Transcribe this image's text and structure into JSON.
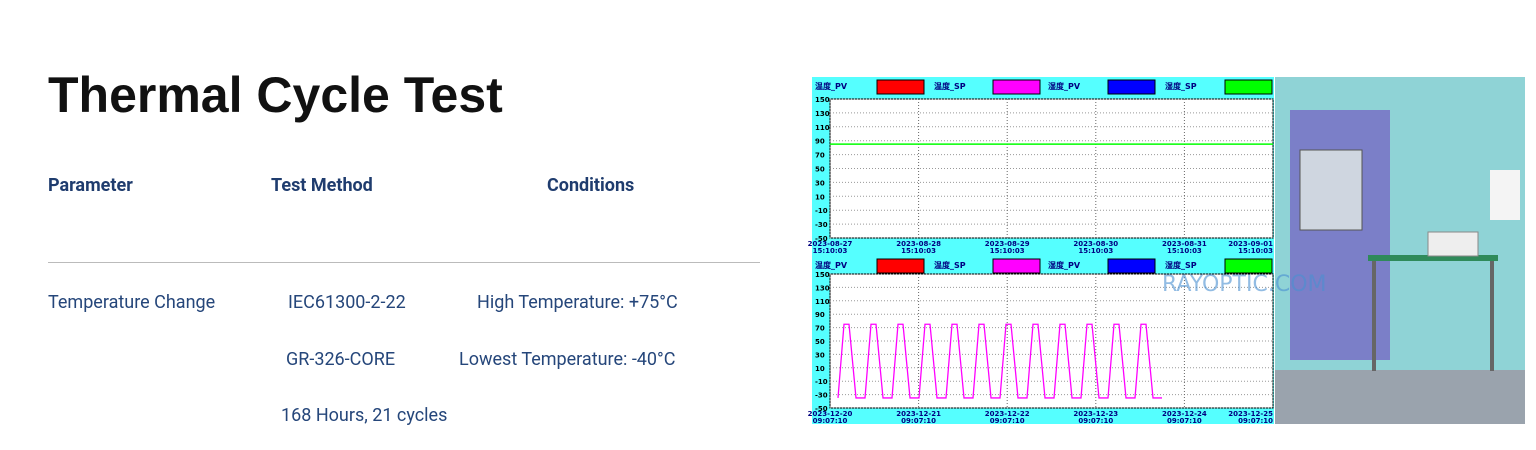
{
  "header": {
    "title": "Thermal Cycle Test"
  },
  "table": {
    "headers": [
      "Parameter",
      "Test Method",
      "Conditions"
    ],
    "rows": [
      [
        "Temperature Change",
        "IEC61300-2-22",
        "High Temperature: +75°C"
      ],
      [
        "",
        "GR-326-CORE",
        "Lowest Temperature: -40°C"
      ],
      [
        "",
        "168 Hours, 21 cycles",
        ""
      ]
    ]
  },
  "image": {
    "legend": [
      {
        "name": "温度_PV",
        "color": "#ff0000"
      },
      {
        "name": "温度_SP",
        "color": "#ff00ff"
      },
      {
        "name": "湿度_PV",
        "color": "#0000ff"
      },
      {
        "name": "湿度_SP",
        "color": "#00ff00"
      }
    ],
    "ylim": [
      -50,
      150
    ],
    "yticks": [
      150,
      130,
      110,
      90,
      70,
      50,
      30,
      10,
      -10,
      -30,
      -50
    ],
    "top_chart": {
      "dates": [
        "2023-08-27",
        "2023-08-28",
        "2023-08-29",
        "2023-08-30",
        "2023-08-31",
        "2023-09-01"
      ],
      "times": [
        "15:10:03",
        "15:10:03",
        "15:10:03",
        "15:10:03",
        "15:10:03",
        "15:10:03"
      ],
      "sp_level": 85
    },
    "bottom_chart": {
      "dates": [
        "2023-12-20",
        "2023-12-21",
        "2023-12-22",
        "2023-12-23",
        "2023-12-24",
        "2023-12-25"
      ],
      "times": [
        "09:07:10",
        "09:07:10",
        "09:07:10",
        "09:07:10",
        "09:07:10",
        "09:07:10"
      ],
      "cycle": {
        "high": 75,
        "low": -35,
        "count": 12
      }
    },
    "watermark": "RAYOPTIC.COM"
  }
}
